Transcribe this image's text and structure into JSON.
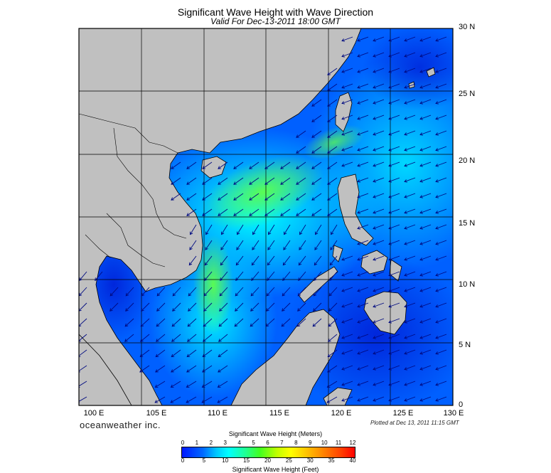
{
  "title": "Significant Wave Height with Wave Direction",
  "subtitle": "Valid For Dec-13-2011 18:00 GMT",
  "lon_labels": [
    "100 E",
    "105 E",
    "110 E",
    "115 E",
    "120 E",
    "125 E",
    "130 E"
  ],
  "lat_labels": [
    "0",
    "5 N",
    "10 N",
    "15 N",
    "20 N",
    "25 N",
    "30 N"
  ],
  "brand": "oceanweather inc.",
  "plotted": "Plotted at Dec 13, 2011 11:15 GMT",
  "colorbar": {
    "meters_title": "Significant Wave Height (Meters)",
    "meters_ticks": [
      "0",
      "1",
      "2",
      "3",
      "4",
      "5",
      "6",
      "7",
      "8",
      "9",
      "10",
      "11",
      "12"
    ],
    "feet_title": "Significant Wave Height (Feet)",
    "feet_ticks": [
      "0",
      "5",
      "10",
      "15",
      "20",
      "25",
      "30",
      "35",
      "40"
    ]
  },
  "colors": {
    "land": "#c0c0c0",
    "low_wave": "#0040ff",
    "mid_wave": "#00ffff",
    "high_wave": "#40ff20"
  },
  "wave_direction": "northeast to southwest"
}
